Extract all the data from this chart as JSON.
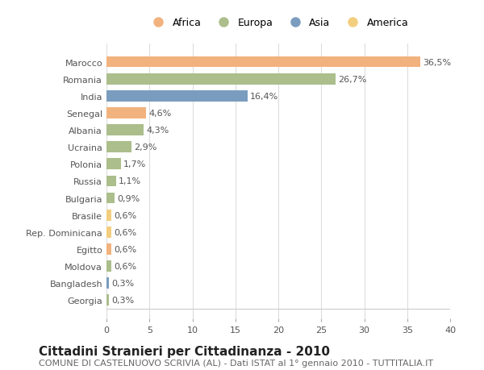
{
  "countries": [
    "Georgia",
    "Bangladesh",
    "Moldova",
    "Egitto",
    "Rep. Dominicana",
    "Brasile",
    "Bulgaria",
    "Russia",
    "Polonia",
    "Ucraina",
    "Albania",
    "Senegal",
    "India",
    "Romania",
    "Marocco"
  ],
  "values": [
    0.3,
    0.3,
    0.6,
    0.6,
    0.6,
    0.6,
    0.9,
    1.1,
    1.7,
    2.9,
    4.3,
    4.6,
    16.4,
    26.7,
    36.5
  ],
  "labels": [
    "0,3%",
    "0,3%",
    "0,6%",
    "0,6%",
    "0,6%",
    "0,6%",
    "0,9%",
    "1,1%",
    "1,7%",
    "2,9%",
    "4,3%",
    "4,6%",
    "16,4%",
    "26,7%",
    "36,5%"
  ],
  "continents": [
    "Europa",
    "Asia",
    "Europa",
    "Africa",
    "America",
    "America",
    "Europa",
    "Europa",
    "Europa",
    "Europa",
    "Europa",
    "Africa",
    "Asia",
    "Europa",
    "Africa"
  ],
  "colors": {
    "Africa": "#F2B27E",
    "Europa": "#ABBE8B",
    "Asia": "#7A9DBF",
    "America": "#F2CE7E"
  },
  "legend_order": [
    "Africa",
    "Europa",
    "Asia",
    "America"
  ],
  "title": "Cittadini Stranieri per Cittadinanza - 2010",
  "subtitle": "COMUNE DI CASTELNUOVO SCRIVIA (AL) - Dati ISTAT al 1° gennaio 2010 - TUTTITALIA.IT",
  "xlim": [
    0,
    40
  ],
  "xticks": [
    0,
    5,
    10,
    15,
    20,
    25,
    30,
    35,
    40
  ],
  "background_color": "#ffffff",
  "grid_color": "#dddddd",
  "bar_height": 0.65,
  "title_fontsize": 11,
  "subtitle_fontsize": 8,
  "label_fontsize": 8,
  "tick_fontsize": 8,
  "legend_fontsize": 9
}
